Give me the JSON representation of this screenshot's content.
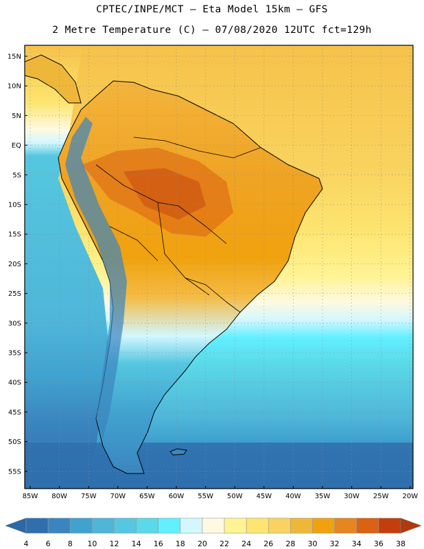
{
  "header": {
    "title_line1": "CPTEC/INPE/MCT –  Eta Model 15km – GFS",
    "title_line2": "2 Metre Temperature (C) – 07/08/2020 12UTC fct=129h"
  },
  "map": {
    "lat_labels": [
      "15N",
      "10N",
      "5N",
      "EQ",
      "5S",
      "10S",
      "15S",
      "20S",
      "25S",
      "30S",
      "35S",
      "40S",
      "45S",
      "50S",
      "55S"
    ],
    "lon_labels": [
      "85W",
      "80W",
      "75W",
      "70W",
      "65W",
      "60W",
      "55W",
      "50W",
      "45W",
      "40W",
      "35W",
      "30W",
      "25W",
      "20W"
    ]
  },
  "colorbar": {
    "labels": [
      "4",
      "6",
      "8",
      "10",
      "12",
      "14",
      "16",
      "18",
      "20",
      "22",
      "24",
      "26",
      "28",
      "30",
      "32",
      "34",
      "36",
      "38"
    ],
    "under_color": "#2c67a6",
    "over_color": "#b03a0c",
    "colors": [
      "#2f6fae",
      "#3a85bf",
      "#40a2cf",
      "#4fb6d9",
      "#55c7e0",
      "#5ad9e8",
      "#62efff",
      "#d2f7ff",
      "#fef9e2",
      "#fff394",
      "#fde570",
      "#f9d35f",
      "#efb73a",
      "#f0a20e",
      "#e5861f",
      "#db6113",
      "#c23f0d"
    ]
  },
  "legend_colors": {
    "land_warm": "#efa323",
    "ocean_warm": "#f6c24a",
    "ocean_cool": "#5ad9e8",
    "ocean_cold": "#2f6fae"
  }
}
